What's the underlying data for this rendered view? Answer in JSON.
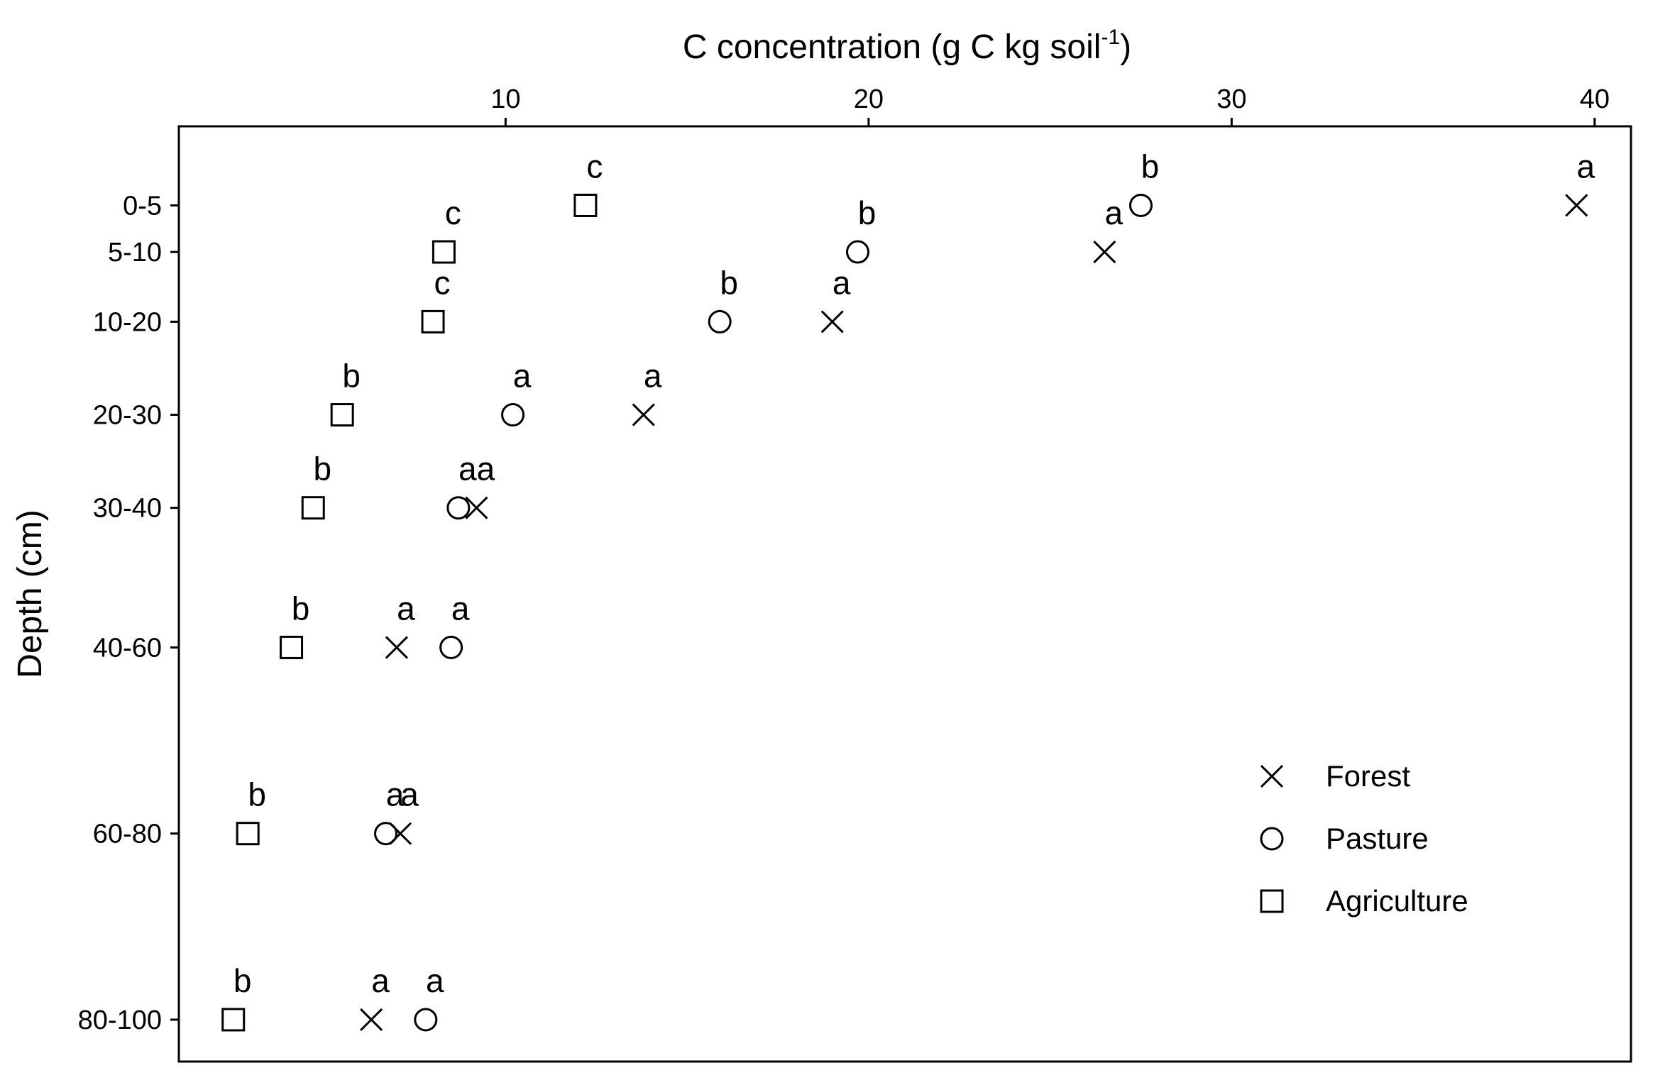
{
  "chart_data": {
    "type": "scatter",
    "title": "",
    "xlabel": "C concentration (g C kg soil",
    "xlabel_sup": "-1",
    "xlabel_close": ")",
    "ylabel": "Depth (cm)",
    "xlim": [
      1,
      41
    ],
    "x_ticks": [
      10,
      20,
      30,
      40
    ],
    "x_axis_position": "top",
    "y_axis": "depth, increasing downward",
    "depth_categories": [
      {
        "label": "0-5",
        "value": 2.5
      },
      {
        "label": "5-10",
        "value": 7.5
      },
      {
        "label": "10-20",
        "value": 15
      },
      {
        "label": "20-30",
        "value": 25
      },
      {
        "label": "30-40",
        "value": 35
      },
      {
        "label": "40-60",
        "value": 50
      },
      {
        "label": "60-80",
        "value": 70
      },
      {
        "label": "80-100",
        "value": 90
      }
    ],
    "ylim": [
      -6,
      94.5
    ],
    "grid": false,
    "legend_position": "bottom-right",
    "series": [
      {
        "name": "Forest",
        "marker": "x",
        "points": [
          {
            "depth": "0-5",
            "x": 39.5,
            "letter": "a"
          },
          {
            "depth": "5-10",
            "x": 26.5,
            "letter": "a"
          },
          {
            "depth": "10-20",
            "x": 19.0,
            "letter": "a"
          },
          {
            "depth": "20-30",
            "x": 13.8,
            "letter": "a"
          },
          {
            "depth": "30-40",
            "x": 9.2,
            "letter": "a"
          },
          {
            "depth": "40-60",
            "x": 7.0,
            "letter": "a"
          },
          {
            "depth": "60-80",
            "x": 7.1,
            "letter": "a"
          },
          {
            "depth": "80-100",
            "x": 6.3,
            "letter": "a"
          }
        ]
      },
      {
        "name": "Pasture",
        "marker": "circle",
        "points": [
          {
            "depth": "0-5",
            "x": 27.5,
            "letter": "b"
          },
          {
            "depth": "5-10",
            "x": 19.7,
            "letter": "b"
          },
          {
            "depth": "10-20",
            "x": 15.9,
            "letter": "b"
          },
          {
            "depth": "20-30",
            "x": 10.2,
            "letter": "a"
          },
          {
            "depth": "30-40",
            "x": 8.7,
            "letter": "a"
          },
          {
            "depth": "40-60",
            "x": 8.5,
            "letter": "a"
          },
          {
            "depth": "60-80",
            "x": 6.7,
            "letter": "a"
          },
          {
            "depth": "80-100",
            "x": 7.8,
            "letter": "a"
          }
        ]
      },
      {
        "name": "Agriculture",
        "marker": "square",
        "points": [
          {
            "depth": "0-5",
            "x": 12.2,
            "letter": "c"
          },
          {
            "depth": "5-10",
            "x": 8.3,
            "letter": "c"
          },
          {
            "depth": "10-20",
            "x": 8.0,
            "letter": "c"
          },
          {
            "depth": "20-30",
            "x": 5.5,
            "letter": "b"
          },
          {
            "depth": "30-40",
            "x": 4.7,
            "letter": "b"
          },
          {
            "depth": "40-60",
            "x": 4.1,
            "letter": "b"
          },
          {
            "depth": "60-80",
            "x": 2.9,
            "letter": "b"
          },
          {
            "depth": "80-100",
            "x": 2.5,
            "letter": "b"
          }
        ]
      }
    ]
  }
}
